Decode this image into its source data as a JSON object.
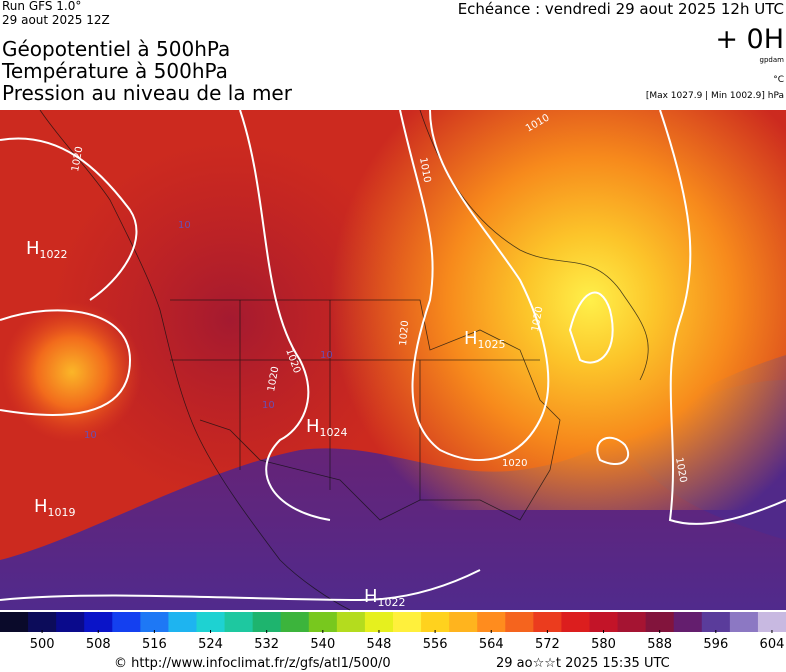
{
  "header": {
    "run": "Run GFS 1.0°",
    "run_date": "29 aout 2025 12Z",
    "titles": [
      "Géopotentiel à 500hPa",
      "Température à 500hPa",
      "Pression au niveau de la mer"
    ],
    "echeance": "Echéance : vendredi 29 aout 2025 12h UTC",
    "offset": "+ 0H",
    "unit_gpdam": "gpdam",
    "unit_temp": "°C",
    "extremes": "[Max 1027.9 | Min 1002.9] hPa"
  },
  "map": {
    "highs": [
      {
        "letter": "H",
        "value": 1022
      },
      {
        "letter": "H",
        "value": 1025
      },
      {
        "letter": "H",
        "value": 1024
      },
      {
        "letter": "H",
        "value": 1019
      },
      {
        "letter": "H",
        "value": 1022
      }
    ],
    "isobar_labels": [
      "1020",
      "1010",
      "1010",
      "1020",
      "1020",
      "1020",
      "1020",
      "1020",
      "1020",
      "10",
      "10",
      "10",
      "10"
    ]
  },
  "colorbar": {
    "lim": [
      494,
      606
    ],
    "ticks": [
      500,
      508,
      516,
      524,
      532,
      540,
      548,
      556,
      564,
      572,
      580,
      588,
      596,
      604
    ],
    "colors": [
      "#0a0a2a",
      "#0c0c5a",
      "#0a0a8c",
      "#0a14c8",
      "#1440f0",
      "#1e78f5",
      "#1eb4f0",
      "#1ed2d2",
      "#1ec8a0",
      "#1eb46e",
      "#3cb43c",
      "#78c81e",
      "#b4dc1e",
      "#e6f01e",
      "#fff03c",
      "#ffd21e",
      "#ffb41e",
      "#ff8c1e",
      "#f5641e",
      "#eb3c1e",
      "#dc1e1e",
      "#c31428",
      "#a51432",
      "#82143c",
      "#641e6e",
      "#5a3c9b",
      "#8c78c3",
      "#c8b9e1"
    ]
  },
  "footer": {
    "source": "© http://www.infoclimat.fr/z/gfs/atl1/500/0",
    "timestamp": "29 ao☆☆t 2025 15:35 UTC"
  }
}
